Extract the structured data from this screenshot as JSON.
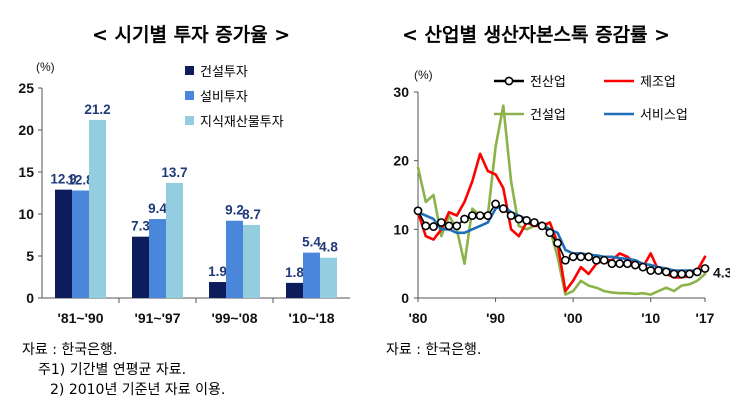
{
  "left_title": "< 시기별 투자 증가율 >",
  "right_title": "< 산업별 생산자본스톡 증감률 >",
  "left_notes": {
    "source": "자료 : 한국은행.",
    "note1": "주1) 기간별 연평균 자료.",
    "note2": "2) 2010년 기준년 자료 이용."
  },
  "right_notes": {
    "source": "자료 : 한국은행."
  },
  "colors": {
    "construction": "#0d1d5c",
    "equipment": "#4a86d9",
    "ip": "#93cddf",
    "all": "#000000",
    "manufacturing": "#ff0000",
    "construction_ind": "#8bb34a",
    "services": "#1f6fb8"
  },
  "chart_data": [
    {
      "type": "bar",
      "unit": "(%)",
      "categories": [
        "'81~'90",
        "'91~'97",
        "'99~'08",
        "'10~'18"
      ],
      "series": [
        {
          "name": "건설투자",
          "values": [
            12.9,
            7.3,
            1.9,
            1.8
          ]
        },
        {
          "name": "설비투자",
          "values": [
            12.8,
            9.4,
            9.2,
            5.4
          ]
        },
        {
          "name": "지식재산물투자",
          "values": [
            21.2,
            13.7,
            8.7,
            4.8
          ]
        }
      ],
      "data_labels": [
        [
          "12.9",
          "7.3",
          "1.9",
          "1.8"
        ],
        [
          "12.8",
          "9.4",
          "9.2",
          "5.4"
        ],
        [
          "21.2",
          "13.7",
          "8.7",
          "4.8"
        ]
      ],
      "ylim": [
        0,
        25
      ],
      "yticks": [
        "0",
        "5",
        "10",
        "15",
        "20",
        "25"
      ],
      "legend": "top-right"
    },
    {
      "type": "line",
      "unit": "(%)",
      "x": [
        1980,
        1981,
        1982,
        1983,
        1984,
        1985,
        1986,
        1987,
        1988,
        1989,
        1990,
        1991,
        1992,
        1993,
        1994,
        1995,
        1996,
        1997,
        1998,
        1999,
        2000,
        2001,
        2002,
        2003,
        2004,
        2005,
        2006,
        2007,
        2008,
        2009,
        2010,
        2011,
        2012,
        2013,
        2014,
        2015,
        2016,
        2017
      ],
      "xticks": [
        "'80",
        "'90",
        "'00",
        "'10",
        "'17"
      ],
      "xtick_values": [
        1980,
        1990,
        2000,
        2010,
        2017
      ],
      "ylim": [
        0,
        30
      ],
      "yticks": [
        "0",
        "10",
        "20",
        "30"
      ],
      "series": [
        {
          "name": "전산업",
          "values": [
            12.7,
            10.5,
            10.4,
            11.0,
            10.5,
            10.5,
            11.5,
            12.0,
            12.0,
            12.0,
            13.7,
            13.0,
            12.0,
            11.5,
            11.3,
            11.0,
            10.5,
            9.5,
            8.0,
            5.5,
            6.0,
            6.0,
            6.0,
            5.5,
            5.5,
            5.0,
            5.0,
            5.0,
            4.8,
            4.5,
            4.0,
            4.0,
            3.8,
            3.5,
            3.5,
            3.5,
            3.8,
            4.3
          ],
          "end_label": "4.3"
        },
        {
          "name": "제조업",
          "values": [
            12.5,
            9.0,
            8.5,
            10.0,
            12.5,
            12.0,
            14.0,
            17.0,
            21.0,
            18.5,
            18.0,
            16.0,
            10.0,
            9.0,
            11.0,
            10.5,
            10.5,
            11.0,
            8.0,
            1.0,
            2.5,
            4.5,
            3.5,
            5.0,
            5.5,
            5.5,
            6.5,
            6.0,
            5.0,
            4.5,
            6.5,
            4.0,
            3.5,
            3.0,
            3.0,
            3.2,
            4.0,
            6.0
          ]
        },
        {
          "name": "건설업",
          "values": [
            19.0,
            14.0,
            15.0,
            9.0,
            12.0,
            10.0,
            5.0,
            13.0,
            12.0,
            12.0,
            22.0,
            28.0,
            17.0,
            10.5,
            10.0,
            10.5,
            11.0,
            10.0,
            6.0,
            0.5,
            1.0,
            2.5,
            1.8,
            1.5,
            1.0,
            0.8,
            0.7,
            0.7,
            0.6,
            0.7,
            0.5,
            1.0,
            1.5,
            1.0,
            1.8,
            2.0,
            2.5,
            3.5
          ]
        },
        {
          "name": "서비스업",
          "values": [
            12.5,
            12.0,
            11.5,
            10.0,
            10.0,
            9.5,
            9.5,
            10.0,
            10.5,
            11.0,
            13.0,
            13.5,
            12.5,
            12.0,
            11.5,
            11.0,
            10.5,
            10.0,
            9.5,
            7.0,
            6.5,
            6.5,
            6.3,
            6.2,
            6.0,
            6.0,
            5.8,
            5.7,
            5.5,
            5.0,
            4.8,
            4.5,
            4.3,
            4.0,
            4.0,
            4.0,
            4.0,
            4.2
          ]
        }
      ],
      "legend": "top"
    }
  ]
}
